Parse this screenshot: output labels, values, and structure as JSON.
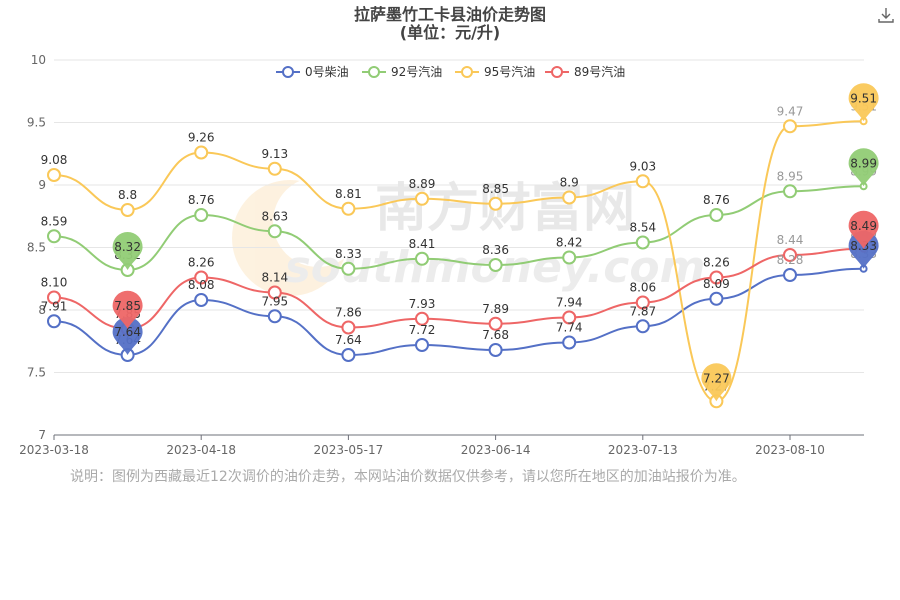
{
  "chart_data": {
    "type": "line",
    "title": "拉萨墨竹工卡县油价走势图",
    "subtitle": "(单位：元/升)",
    "xlabel": "",
    "ylabel": "",
    "x_tick_labels": [
      "2023-03-18",
      "2023-04-18",
      "2023-05-17",
      "2023-06-14",
      "2023-07-13",
      "2023-08-10"
    ],
    "x": [
      "2023-03-18",
      "2023-04-01",
      "2023-04-18",
      "2023-05-04",
      "2023-05-17",
      "2023-05-31",
      "2023-06-14",
      "2023-06-28",
      "2023-07-13",
      "2023-07-26",
      "2023-08-10",
      "2023-08-24"
    ],
    "ylim": [
      7,
      10
    ],
    "y_ticks": [
      "7",
      "7.5",
      "8",
      "8.5",
      "9",
      "9.5",
      "10"
    ],
    "y_tick_values": [
      7,
      7.5,
      8,
      8.5,
      9,
      9.5,
      10
    ],
    "grid": true,
    "smooth": true,
    "legend_position": "top-center",
    "series": [
      {
        "name": "0号柴油",
        "color": "#5470c6",
        "values": [
          7.91,
          7.64,
          8.08,
          7.95,
          7.64,
          7.72,
          7.68,
          7.74,
          7.87,
          8.09,
          8.28,
          8.33
        ],
        "labels": [
          "7.91",
          "7.64",
          "8.08",
          "7.95",
          "7.64",
          "7.72",
          "7.68",
          "7.74",
          "7.87",
          "8.09",
          "8.28",
          "8.33"
        ],
        "max": "8.33",
        "min": "7.64"
      },
      {
        "name": "92号汽油",
        "color": "#91cc75",
        "values": [
          8.59,
          8.32,
          8.76,
          8.63,
          8.33,
          8.41,
          8.36,
          8.42,
          8.54,
          8.76,
          8.95,
          8.99
        ],
        "labels": [
          "8.59",
          "8.32",
          "8.76",
          "8.63",
          "8.33",
          "8.41",
          "8.36",
          "8.42",
          "8.54",
          "8.76",
          "8.95",
          "8.99"
        ],
        "max": "8.99",
        "min": "8.32"
      },
      {
        "name": "95号汽油",
        "color": "#fac858",
        "values": [
          9.08,
          8.8,
          9.26,
          9.13,
          8.81,
          8.89,
          8.85,
          8.9,
          9.03,
          7.27,
          9.47,
          9.51
        ],
        "labels": [
          "9.08",
          "8.8",
          "9.26",
          "9.13",
          "8.81",
          "8.89",
          "8.85",
          "8.9",
          "9.03",
          "7.27",
          "9.47",
          "9.51"
        ],
        "max": "9.51",
        "min": "7.27"
      },
      {
        "name": "89号汽油",
        "color": "#ee6666",
        "values": [
          8.1,
          7.85,
          8.26,
          8.14,
          7.86,
          7.93,
          7.89,
          7.94,
          8.06,
          8.26,
          8.44,
          8.49
        ],
        "labels": [
          "8.10",
          "7.85",
          "8.26",
          "8.14",
          "7.86",
          "7.93",
          "7.89",
          "7.94",
          "8.06",
          "8.26",
          "8.44",
          "8.49"
        ],
        "max": "8.49",
        "min": "7.85"
      }
    ]
  },
  "note": "说明：图例为西藏最近12次调价的油价走势，本网站油价数据仅供参考，请以您所在地区的加油站报价为准。",
  "watermark": {
    "cn": "南方财富网",
    "en": "southmoney.com"
  },
  "icons": {
    "download": "download-icon"
  }
}
